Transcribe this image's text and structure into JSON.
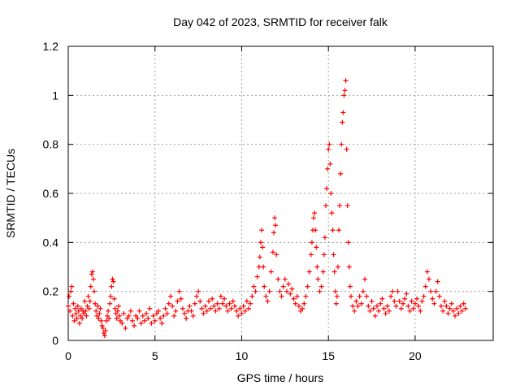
{
  "chart_data": {
    "type": "scatter",
    "title": "Day 042 of 2023, SRMTID for receiver falk",
    "xlabel": "GPS time / hours",
    "ylabel": "SRMTID / TECUs",
    "xlim": [
      0,
      24.5
    ],
    "ylim": [
      0,
      1.2
    ],
    "x_ticks": [
      0,
      5,
      10,
      15,
      20
    ],
    "x_tick_labels": [
      "0",
      "5",
      "10",
      "15",
      "20"
    ],
    "y_ticks": [
      0,
      0.2,
      0.4,
      0.6,
      0.8,
      1,
      1.2
    ],
    "y_tick_labels": [
      "0",
      "0.2",
      "0.4",
      "0.6",
      "0.8",
      "1",
      "1.2"
    ],
    "grid": true,
    "marker": "+",
    "color": "#ff0000",
    "series": [
      {
        "name": "SRMTID",
        "points": [
          [
            0.0,
            0.14
          ],
          [
            0.05,
            0.18
          ],
          [
            0.1,
            0.12
          ],
          [
            0.15,
            0.2
          ],
          [
            0.2,
            0.22
          ],
          [
            0.25,
            0.1
          ],
          [
            0.3,
            0.15
          ],
          [
            0.35,
            0.08
          ],
          [
            0.4,
            0.13
          ],
          [
            0.45,
            0.11
          ],
          [
            0.5,
            0.09
          ],
          [
            0.55,
            0.14
          ],
          [
            0.6,
            0.12
          ],
          [
            0.65,
            0.07
          ],
          [
            0.7,
            0.1
          ],
          [
            0.75,
            0.13
          ],
          [
            0.8,
            0.09
          ],
          [
            0.85,
            0.12
          ],
          [
            0.9,
            0.11
          ],
          [
            0.95,
            0.16
          ],
          [
            1.0,
            0.12
          ],
          [
            1.05,
            0.1
          ],
          [
            1.1,
            0.14
          ],
          [
            1.15,
            0.18
          ],
          [
            1.2,
            0.13
          ],
          [
            1.25,
            0.16
          ],
          [
            1.3,
            0.22
          ],
          [
            1.35,
            0.27
          ],
          [
            1.4,
            0.28
          ],
          [
            1.45,
            0.25
          ],
          [
            1.5,
            0.2
          ],
          [
            1.55,
            0.15
          ],
          [
            1.6,
            0.12
          ],
          [
            1.65,
            0.1
          ],
          [
            1.7,
            0.14
          ],
          [
            1.75,
            0.09
          ],
          [
            1.8,
            0.11
          ],
          [
            1.85,
            0.13
          ],
          [
            1.9,
            0.08
          ],
          [
            1.95,
            0.06
          ],
          [
            2.0,
            0.05
          ],
          [
            2.05,
            0.03
          ],
          [
            2.1,
            0.02
          ],
          [
            2.15,
            0.04
          ],
          [
            2.2,
            0.08
          ],
          [
            2.25,
            0.1
          ],
          [
            2.3,
            0.12
          ],
          [
            2.35,
            0.09
          ],
          [
            2.4,
            0.15
          ],
          [
            2.45,
            0.18
          ],
          [
            2.5,
            0.22
          ],
          [
            2.55,
            0.25
          ],
          [
            2.6,
            0.24
          ],
          [
            2.65,
            0.17
          ],
          [
            2.7,
            0.13
          ],
          [
            2.75,
            0.11
          ],
          [
            2.8,
            0.09
          ],
          [
            2.85,
            0.12
          ],
          [
            2.9,
            0.14
          ],
          [
            2.95,
            0.1
          ],
          [
            3.0,
            0.08
          ],
          [
            3.1,
            0.07
          ],
          [
            3.2,
            0.11
          ],
          [
            3.3,
            0.05
          ],
          [
            3.4,
            0.09
          ],
          [
            3.5,
            0.1
          ],
          [
            3.6,
            0.12
          ],
          [
            3.7,
            0.08
          ],
          [
            3.8,
            0.06
          ],
          [
            3.9,
            0.1
          ],
          [
            4.0,
            0.09
          ],
          [
            4.1,
            0.12
          ],
          [
            4.2,
            0.07
          ],
          [
            4.3,
            0.1
          ],
          [
            4.4,
            0.08
          ],
          [
            4.5,
            0.11
          ],
          [
            4.6,
            0.09
          ],
          [
            4.7,
            0.13
          ],
          [
            4.8,
            0.07
          ],
          [
            4.9,
            0.1
          ],
          [
            5.0,
            0.08
          ],
          [
            5.1,
            0.11
          ],
          [
            5.2,
            0.12
          ],
          [
            5.3,
            0.09
          ],
          [
            5.4,
            0.07
          ],
          [
            5.5,
            0.1
          ],
          [
            5.6,
            0.13
          ],
          [
            5.7,
            0.11
          ],
          [
            5.8,
            0.15
          ],
          [
            5.9,
            0.18
          ],
          [
            6.0,
            0.14
          ],
          [
            6.1,
            0.1
          ],
          [
            6.2,
            0.12
          ],
          [
            6.3,
            0.16
          ],
          [
            6.4,
            0.2
          ],
          [
            6.5,
            0.17
          ],
          [
            6.6,
            0.13
          ],
          [
            6.7,
            0.11
          ],
          [
            6.8,
            0.09
          ],
          [
            6.9,
            0.12
          ],
          [
            7.0,
            0.14
          ],
          [
            7.1,
            0.12
          ],
          [
            7.2,
            0.1
          ],
          [
            7.3,
            0.15
          ],
          [
            7.4,
            0.18
          ],
          [
            7.5,
            0.2
          ],
          [
            7.6,
            0.16
          ],
          [
            7.7,
            0.13
          ],
          [
            7.8,
            0.11
          ],
          [
            7.9,
            0.14
          ],
          [
            8.0,
            0.12
          ],
          [
            8.1,
            0.16
          ],
          [
            8.2,
            0.13
          ],
          [
            8.3,
            0.17
          ],
          [
            8.4,
            0.14
          ],
          [
            8.5,
            0.12
          ],
          [
            8.6,
            0.15
          ],
          [
            8.7,
            0.13
          ],
          [
            8.8,
            0.18
          ],
          [
            8.9,
            0.15
          ],
          [
            9.0,
            0.17
          ],
          [
            9.1,
            0.14
          ],
          [
            9.2,
            0.12
          ],
          [
            9.3,
            0.15
          ],
          [
            9.4,
            0.13
          ],
          [
            9.5,
            0.16
          ],
          [
            9.6,
            0.14
          ],
          [
            9.7,
            0.12
          ],
          [
            9.8,
            0.1
          ],
          [
            9.9,
            0.13
          ],
          [
            10.0,
            0.11
          ],
          [
            10.1,
            0.14
          ],
          [
            10.2,
            0.12
          ],
          [
            10.3,
            0.16
          ],
          [
            10.4,
            0.13
          ],
          [
            10.5,
            0.15
          ],
          [
            10.6,
            0.18
          ],
          [
            10.7,
            0.22
          ],
          [
            10.8,
            0.2
          ],
          [
            10.9,
            0.26
          ],
          [
            11.0,
            0.3
          ],
          [
            11.05,
            0.34
          ],
          [
            11.1,
            0.4
          ],
          [
            11.15,
            0.45
          ],
          [
            11.2,
            0.38
          ],
          [
            11.25,
            0.3
          ],
          [
            11.3,
            0.22
          ],
          [
            11.4,
            0.18
          ],
          [
            11.5,
            0.16
          ],
          [
            11.6,
            0.2
          ],
          [
            11.7,
            0.28
          ],
          [
            11.8,
            0.36
          ],
          [
            11.85,
            0.44
          ],
          [
            11.9,
            0.5
          ],
          [
            11.95,
            0.47
          ],
          [
            12.0,
            0.35
          ],
          [
            12.1,
            0.25
          ],
          [
            12.2,
            0.2
          ],
          [
            12.3,
            0.18
          ],
          [
            12.4,
            0.22
          ],
          [
            12.5,
            0.25
          ],
          [
            12.6,
            0.2
          ],
          [
            12.7,
            0.23
          ],
          [
            12.8,
            0.19
          ],
          [
            12.9,
            0.21
          ],
          [
            13.0,
            0.17
          ],
          [
            13.1,
            0.15
          ],
          [
            13.2,
            0.18
          ],
          [
            13.3,
            0.14
          ],
          [
            13.4,
            0.12
          ],
          [
            13.5,
            0.13
          ],
          [
            13.6,
            0.15
          ],
          [
            13.7,
            0.18
          ],
          [
            13.8,
            0.22
          ],
          [
            13.9,
            0.28
          ],
          [
            14.0,
            0.35
          ],
          [
            14.05,
            0.4
          ],
          [
            14.1,
            0.45
          ],
          [
            14.15,
            0.5
          ],
          [
            14.2,
            0.52
          ],
          [
            14.25,
            0.45
          ],
          [
            14.3,
            0.38
          ],
          [
            14.35,
            0.3
          ],
          [
            14.4,
            0.25
          ],
          [
            14.5,
            0.2
          ],
          [
            14.6,
            0.22
          ],
          [
            14.7,
            0.28
          ],
          [
            14.75,
            0.35
          ],
          [
            14.8,
            0.42
          ],
          [
            14.85,
            0.55
          ],
          [
            14.9,
            0.62
          ],
          [
            14.95,
            0.7
          ],
          [
            15.0,
            0.78
          ],
          [
            15.05,
            0.8
          ],
          [
            15.1,
            0.72
          ],
          [
            15.15,
            0.6
          ],
          [
            15.2,
            0.52
          ],
          [
            15.25,
            0.45
          ],
          [
            15.3,
            0.35
          ],
          [
            15.35,
            0.28
          ],
          [
            15.4,
            0.2
          ],
          [
            15.45,
            0.15
          ],
          [
            15.5,
            0.18
          ],
          [
            15.55,
            0.3
          ],
          [
            15.6,
            0.45
          ],
          [
            15.65,
            0.55
          ],
          [
            15.7,
            0.68
          ],
          [
            15.75,
            0.8
          ],
          [
            15.8,
            0.89
          ],
          [
            15.85,
            0.93
          ],
          [
            15.9,
            1.0
          ],
          [
            15.95,
            1.02
          ],
          [
            16.0,
            1.06
          ],
          [
            16.05,
            0.78
          ],
          [
            16.1,
            0.55
          ],
          [
            16.15,
            0.4
          ],
          [
            16.2,
            0.3
          ],
          [
            16.25,
            0.22
          ],
          [
            16.3,
            0.18
          ],
          [
            16.4,
            0.14
          ],
          [
            16.5,
            0.12
          ],
          [
            16.6,
            0.16
          ],
          [
            16.7,
            0.14
          ],
          [
            16.8,
            0.18
          ],
          [
            16.9,
            0.15
          ],
          [
            17.0,
            0.2
          ],
          [
            17.1,
            0.25
          ],
          [
            17.2,
            0.18
          ],
          [
            17.3,
            0.14
          ],
          [
            17.4,
            0.12
          ],
          [
            17.5,
            0.16
          ],
          [
            17.6,
            0.13
          ],
          [
            17.7,
            0.1
          ],
          [
            17.8,
            0.14
          ],
          [
            17.9,
            0.12
          ],
          [
            18.0,
            0.15
          ],
          [
            18.1,
            0.17
          ],
          [
            18.2,
            0.13
          ],
          [
            18.3,
            0.11
          ],
          [
            18.4,
            0.14
          ],
          [
            18.5,
            0.12
          ],
          [
            18.6,
            0.18
          ],
          [
            18.7,
            0.2
          ],
          [
            18.8,
            0.16
          ],
          [
            18.9,
            0.14
          ],
          [
            19.0,
            0.2
          ],
          [
            19.1,
            0.16
          ],
          [
            19.2,
            0.13
          ],
          [
            19.3,
            0.15
          ],
          [
            19.4,
            0.17
          ],
          [
            19.5,
            0.19
          ],
          [
            19.6,
            0.14
          ],
          [
            19.7,
            0.12
          ],
          [
            19.8,
            0.16
          ],
          [
            19.9,
            0.13
          ],
          [
            20.0,
            0.15
          ],
          [
            20.1,
            0.17
          ],
          [
            20.2,
            0.14
          ],
          [
            20.3,
            0.12
          ],
          [
            20.4,
            0.16
          ],
          [
            20.5,
            0.18
          ],
          [
            20.6,
            0.22
          ],
          [
            20.7,
            0.28
          ],
          [
            20.8,
            0.25
          ],
          [
            20.9,
            0.2
          ],
          [
            21.0,
            0.17
          ],
          [
            21.1,
            0.15
          ],
          [
            21.2,
            0.2
          ],
          [
            21.3,
            0.24
          ],
          [
            21.4,
            0.18
          ],
          [
            21.5,
            0.14
          ],
          [
            21.6,
            0.12
          ],
          [
            21.7,
            0.16
          ],
          [
            21.8,
            0.14
          ],
          [
            21.9,
            0.11
          ],
          [
            22.0,
            0.13
          ],
          [
            22.1,
            0.15
          ],
          [
            22.2,
            0.12
          ],
          [
            22.3,
            0.1
          ],
          [
            22.4,
            0.13
          ],
          [
            22.5,
            0.11
          ],
          [
            22.6,
            0.14
          ],
          [
            22.7,
            0.12
          ],
          [
            22.8,
            0.15
          ],
          [
            22.9,
            0.13
          ]
        ]
      }
    ]
  }
}
